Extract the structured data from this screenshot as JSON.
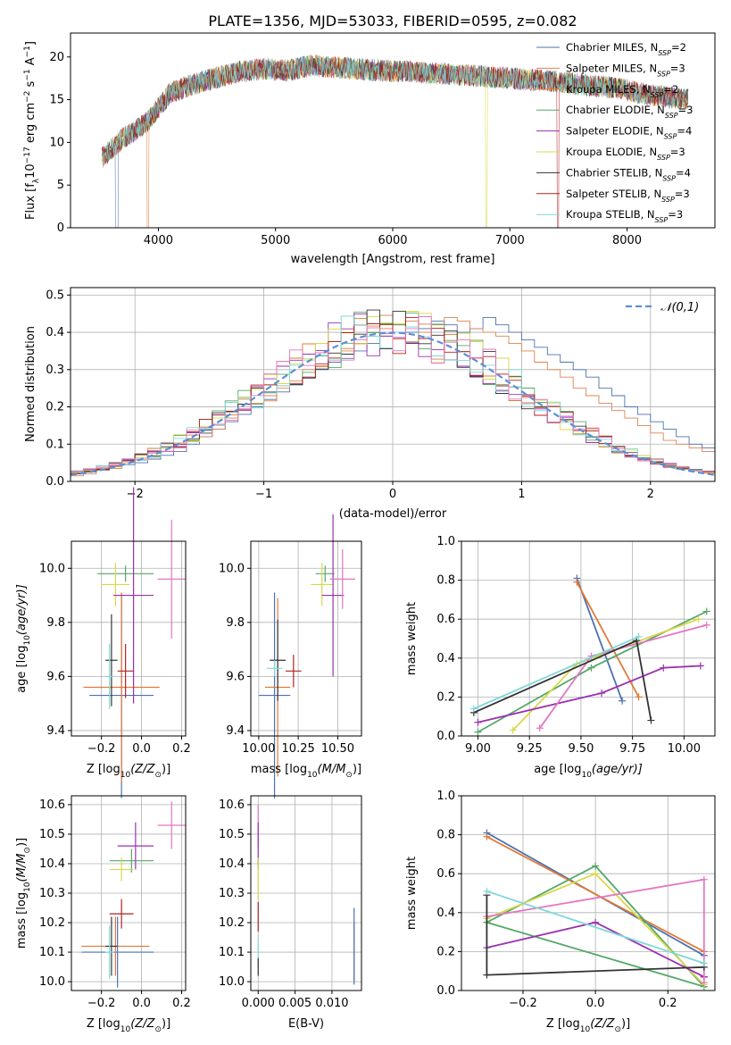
{
  "chart_data": [
    {
      "id": "spectrum",
      "type": "line",
      "title": "PLATE=1356, MJD=53033, FIBERID=0595, z=0.082",
      "xlabel": "wavelength [Angstrom, rest frame]",
      "ylabel": "Flux [f",
      "ylabel_sub": "λ",
      "ylabel_tail": "10",
      "ylabel_exp1": "−17",
      "ylabel_mid": " erg cm",
      "ylabel_exp2": "−2",
      "ylabel_mid2": " s",
      "ylabel_exp3": "−1",
      "ylabel_mid3": " A",
      "ylabel_exp4": "−1",
      "ylabel_end": "]",
      "xlim": [
        3250,
        8750
      ],
      "ylim": [
        0,
        22.8
      ],
      "xticks": [
        4000,
        5000,
        6000,
        7000,
        8000
      ],
      "yticks": [
        0,
        5,
        10,
        15,
        20
      ],
      "grid": false,
      "legend_position": "upper-right",
      "legend": [
        {
          "name": "Chabrier MILES, N",
          "sub": "SSP",
          "tail": "=2",
          "color": "#4c72b0"
        },
        {
          "name": "Salpeter MILES, N",
          "sub": "SSP",
          "tail": "=3",
          "color": "#dd8452"
        },
        {
          "name": "Kroupa MILES, N",
          "sub": "SSP",
          "tail": "=2",
          "color": "#e07b39"
        },
        {
          "name": "Chabrier ELODIE, N",
          "sub": "SSP",
          "tail": "=3",
          "color": "#55a868"
        },
        {
          "name": "Salpeter ELODIE, N",
          "sub": "SSP",
          "tail": "=4",
          "color": "#9b30b0"
        },
        {
          "name": "Kroupa ELODIE, N",
          "sub": "SSP",
          "tail": "=3",
          "color": "#d8d84a"
        },
        {
          "name": "Chabrier STELIB, N",
          "sub": "SSP",
          "tail": "=4",
          "color": "#333333"
        },
        {
          "name": "Salpeter STELIB, N",
          "sub": "SSP",
          "tail": "=3",
          "color": "#b22222"
        },
        {
          "name": "Kroupa STELIB, N",
          "sub": "SSP",
          "tail": "=3",
          "color": "#7fd8d8"
        }
      ],
      "continuum_x": [
        3520,
        3700,
        3900,
        4100,
        4300,
        4500,
        4700,
        4900,
        5100,
        5300,
        5500,
        5700,
        5900,
        6100,
        6300,
        6500,
        6700,
        6900,
        7100,
        7300,
        7500,
        7700,
        7900,
        8100,
        8300,
        8500
      ],
      "continuum_y": [
        8.2,
        10.5,
        12.3,
        15.8,
        16.8,
        17.6,
        18.3,
        18.6,
        18.4,
        19.0,
        18.8,
        18.6,
        18.4,
        18.3,
        18.1,
        18.0,
        17.8,
        17.6,
        17.4,
        17.2,
        17.0,
        16.6,
        16.4,
        15.8,
        15.4,
        15.0
      ],
      "x_range": [
        3520,
        8520
      ]
    },
    {
      "id": "residuals",
      "type": "histogram",
      "xlabel": "(data-model)/error",
      "ylabel": "Normed distribution",
      "xlim": [
        -2.5,
        2.5
      ],
      "ylim": [
        0,
        0.52
      ],
      "xticks": [
        -2,
        -1,
        0,
        1,
        2
      ],
      "yticks": [
        0.0,
        0.1,
        0.2,
        0.3,
        0.4,
        0.5
      ],
      "grid": true,
      "legend_position": "upper-right",
      "legend_label": "𝒩(0,1)",
      "bin_width": 0.1,
      "bin_start": -2.5,
      "series": [
        {
          "color": "#4c72b0",
          "values": [
            0.02,
            0.025,
            0.03,
            0.04,
            0.045,
            0.05,
            0.06,
            0.07,
            0.08,
            0.1,
            0.12,
            0.14,
            0.16,
            0.18,
            0.2,
            0.22,
            0.24,
            0.26,
            0.28,
            0.3,
            0.32,
            0.33,
            0.35,
            0.37,
            0.39,
            0.42,
            0.4,
            0.41,
            0.43,
            0.42,
            0.4,
            0.41,
            0.44,
            0.42,
            0.4,
            0.38,
            0.36,
            0.34,
            0.32,
            0.3,
            0.28,
            0.25,
            0.23,
            0.2,
            0.18,
            0.16,
            0.14,
            0.12,
            0.1,
            0.09
          ]
        },
        {
          "color": "#dd8452",
          "values": [
            0.015,
            0.02,
            0.03,
            0.035,
            0.05,
            0.06,
            0.065,
            0.08,
            0.09,
            0.11,
            0.12,
            0.14,
            0.17,
            0.19,
            0.21,
            0.23,
            0.25,
            0.27,
            0.3,
            0.31,
            0.33,
            0.35,
            0.37,
            0.4,
            0.41,
            0.42,
            0.43,
            0.4,
            0.42,
            0.44,
            0.43,
            0.41,
            0.4,
            0.39,
            0.37,
            0.35,
            0.32,
            0.3,
            0.28,
            0.25,
            0.23,
            0.21,
            0.19,
            0.17,
            0.15,
            0.13,
            0.11,
            0.1,
            0.09,
            0.08
          ]
        }
      ],
      "normal_curve": true
    },
    {
      "id": "age-vs-Z",
      "type": "errorbar",
      "xlabel": "Z [log",
      "xlabel_sub": "10",
      "xlabel_tail": "(Z/Z",
      "xlabel_sub2": "⊙",
      "xlabel_end": ")]",
      "ylabel": "age  [log",
      "ylabel_sub": "10",
      "ylabel_tail": "(age/yr)]",
      "xlim": [
        -0.35,
        0.22
      ],
      "ylim": [
        9.38,
        10.1
      ],
      "xticks": [
        -0.2,
        0.0,
        0.2
      ],
      "yticks": [
        9.4,
        9.6,
        9.8,
        10.0
      ],
      "grid": true,
      "points": [
        {
          "color": "#4c72b0",
          "x": -0.1,
          "y": 9.53,
          "xerr": 0.16,
          "yerr": 0.38
        },
        {
          "color": "#e07b39",
          "x": -0.1,
          "y": 9.56,
          "xerr": 0.19,
          "yerr": 0.35
        },
        {
          "color": "#55a868",
          "x": -0.08,
          "y": 9.98,
          "xerr": 0.14,
          "yerr": 0.03
        },
        {
          "color": "#d8d84a",
          "x": -0.13,
          "y": 9.94,
          "xerr": 0.07,
          "yerr": 0.08
        },
        {
          "color": "#9b30b0",
          "x": -0.04,
          "y": 9.9,
          "xerr": 0.1,
          "yerr": 0.4
        },
        {
          "color": "#e377c2",
          "x": 0.15,
          "y": 9.96,
          "xerr": 0.07,
          "yerr": 0.22
        },
        {
          "color": "#333333",
          "x": -0.15,
          "y": 9.66,
          "xerr": 0.03,
          "yerr": 0.17
        },
        {
          "color": "#b22222",
          "x": -0.08,
          "y": 9.62,
          "xerr": 0.04,
          "yerr": 0.1
        },
        {
          "color": "#7fd8d8",
          "x": -0.16,
          "y": 9.6,
          "xerr": 0.02,
          "yerr": 0.12
        }
      ]
    },
    {
      "id": "age-vs-mass",
      "type": "errorbar",
      "xlabel": "mass [log",
      "xlabel_sub": "10",
      "xlabel_tail": "(M/M",
      "xlabel_sub2": "⊙",
      "xlabel_end": ")]",
      "xlim": [
        9.95,
        10.65
      ],
      "ylim": [
        9.38,
        10.1
      ],
      "xticks": [
        10.0,
        10.25,
        10.5
      ],
      "yticks": [
        9.4,
        9.6,
        9.8,
        10.0
      ],
      "grid": true,
      "points": [
        {
          "color": "#4c72b0",
          "x": 10.1,
          "y": 9.53,
          "xerr": 0.1,
          "yerr": 0.38
        },
        {
          "color": "#e07b39",
          "x": 10.12,
          "y": 9.56,
          "xerr": 0.08,
          "yerr": 0.33
        },
        {
          "color": "#55a868",
          "x": 10.42,
          "y": 9.98,
          "xerr": 0.06,
          "yerr": 0.03
        },
        {
          "color": "#d8d84a",
          "x": 10.4,
          "y": 9.94,
          "xerr": 0.07,
          "yerr": 0.08
        },
        {
          "color": "#9b30b0",
          "x": 10.47,
          "y": 9.9,
          "xerr": 0.07,
          "yerr": 0.3
        },
        {
          "color": "#e377c2",
          "x": 10.53,
          "y": 9.96,
          "xerr": 0.08,
          "yerr": 0.11
        },
        {
          "color": "#333333",
          "x": 10.12,
          "y": 9.66,
          "xerr": 0.05,
          "yerr": 0.15
        },
        {
          "color": "#b22222",
          "x": 10.22,
          "y": 9.62,
          "xerr": 0.05,
          "yerr": 0.06
        },
        {
          "color": "#7fd8d8",
          "x": 10.1,
          "y": 9.63,
          "xerr": 0.05,
          "yerr": 0.03
        }
      ]
    },
    {
      "id": "mw-vs-age",
      "type": "line",
      "xlabel": "age  [log",
      "xlabel_sub": "10",
      "xlabel_tail": "(age/yr)]",
      "ylabel": "mass weight",
      "xlim": [
        8.92,
        10.15
      ],
      "ylim": [
        0,
        1.0
      ],
      "xticks": [
        9.0,
        9.25,
        9.5,
        9.75,
        10.0
      ],
      "yticks": [
        0.0,
        0.2,
        0.4,
        0.6,
        0.8,
        1.0
      ],
      "grid": true,
      "series": [
        {
          "color": "#4c72b0",
          "x": [
            9.48,
            9.7
          ],
          "y": [
            0.81,
            0.18
          ]
        },
        {
          "color": "#e07b39",
          "x": [
            9.48,
            9.78
          ],
          "y": [
            0.79,
            0.2
          ]
        },
        {
          "color": "#55a868",
          "x": [
            9.0,
            9.55,
            10.11
          ],
          "y": [
            0.02,
            0.35,
            0.64
          ]
        },
        {
          "color": "#d8d84a",
          "x": [
            9.17,
            9.48,
            10.07
          ],
          "y": [
            0.03,
            0.37,
            0.6
          ]
        },
        {
          "color": "#9b30b0",
          "x": [
            9.0,
            9.6,
            9.9,
            10.08
          ],
          "y": [
            0.07,
            0.22,
            0.35,
            0.36
          ]
        },
        {
          "color": "#e377c2",
          "x": [
            9.3,
            9.55,
            10.11
          ],
          "y": [
            0.04,
            0.41,
            0.57
          ]
        },
        {
          "color": "#333333",
          "x": [
            8.98,
            9.77,
            9.84
          ],
          "y": [
            0.12,
            0.49,
            0.08
          ]
        },
        {
          "color": "#7fd8d8",
          "x": [
            8.98,
            9.78
          ],
          "y": [
            0.14,
            0.51
          ]
        }
      ]
    },
    {
      "id": "mass-vs-Z",
      "type": "errorbar",
      "xlabel": "Z [log",
      "xlabel_sub": "10",
      "xlabel_tail": "(Z/Z",
      "xlabel_sub2": "⊙",
      "xlabel_end": ")]",
      "ylabel": "mass [log",
      "ylabel_sub": "10",
      "ylabel_tail": "(M/M",
      "ylabel_sub2": "⊙",
      "ylabel_end": ")]",
      "xlim": [
        -0.35,
        0.22
      ],
      "ylim": [
        9.97,
        10.63
      ],
      "xticks": [
        -0.2,
        0.0,
        0.2
      ],
      "yticks": [
        10.0,
        10.1,
        10.2,
        10.3,
        10.4,
        10.5,
        10.6
      ],
      "grid": true,
      "points": [
        {
          "color": "#4c72b0",
          "x": -0.12,
          "y": 10.1,
          "xerr": 0.18,
          "yerr": 0.12
        },
        {
          "color": "#e07b39",
          "x": -0.13,
          "y": 10.12,
          "xerr": 0.17,
          "yerr": 0.1
        },
        {
          "color": "#55a868",
          "x": -0.05,
          "y": 10.41,
          "xerr": 0.11,
          "yerr": 0.04
        },
        {
          "color": "#d8d84a",
          "x": -0.1,
          "y": 10.38,
          "xerr": 0.06,
          "yerr": 0.04
        },
        {
          "color": "#9b30b0",
          "x": -0.03,
          "y": 10.46,
          "xerr": 0.09,
          "yerr": 0.08
        },
        {
          "color": "#e377c2",
          "x": 0.15,
          "y": 10.53,
          "xerr": 0.07,
          "yerr": 0.08
        },
        {
          "color": "#333333",
          "x": -0.15,
          "y": 10.12,
          "xerr": 0.03,
          "yerr": 0.1
        },
        {
          "color": "#b22222",
          "x": -0.1,
          "y": 10.23,
          "xerr": 0.06,
          "yerr": 0.05
        },
        {
          "color": "#7fd8d8",
          "x": -0.16,
          "y": 10.1,
          "xerr": 0.02,
          "yerr": 0.09
        }
      ]
    },
    {
      "id": "mass-vs-ebv",
      "type": "errorbar",
      "xlabel": "E(B-V)",
      "xlim": [
        -0.001,
        0.014
      ],
      "ylim": [
        9.97,
        10.63
      ],
      "xticks": [
        0.0,
        0.005,
        0.01
      ],
      "xtick_labels": [
        "0.000",
        "0.005",
        "0.010"
      ],
      "yticks": [
        10.0,
        10.1,
        10.2,
        10.3,
        10.4,
        10.5,
        10.6
      ],
      "grid": true,
      "points": [
        {
          "color": "#e377c2",
          "x": 0.0,
          "y": 10.53,
          "xerr": 0,
          "yerr": 0.07
        },
        {
          "color": "#9b30b0",
          "x": 0.0,
          "y": 10.46,
          "xerr": 0,
          "yerr": 0.08
        },
        {
          "color": "#d8d84a",
          "x": 0.0,
          "y": 10.35,
          "xerr": 0,
          "yerr": 0.07
        },
        {
          "color": "#b22222",
          "x": 0.0,
          "y": 10.22,
          "xerr": 0,
          "yerr": 0.05
        },
        {
          "color": "#7fd8d8",
          "x": 0.0,
          "y": 10.1,
          "xerr": 0,
          "yerr": 0.05
        },
        {
          "color": "#333333",
          "x": 0.0,
          "y": 10.05,
          "xerr": 0,
          "yerr": 0.03
        },
        {
          "color": "#e07b39",
          "x": 0.013,
          "y": 10.1,
          "xerr": 0,
          "yerr": 0.1
        },
        {
          "color": "#4c72b0",
          "x": 0.013,
          "y": 10.12,
          "xerr": 0,
          "yerr": 0.13
        }
      ]
    },
    {
      "id": "mw-vs-Z",
      "type": "line",
      "xlabel": "Z [log",
      "xlabel_sub": "10",
      "xlabel_tail": "(Z/Z",
      "xlabel_sub2": "⊙",
      "xlabel_end": ")]",
      "ylabel": "mass weight",
      "xlim": [
        -0.37,
        0.33
      ],
      "ylim": [
        0,
        1.0
      ],
      "xticks": [
        -0.2,
        0.0,
        0.2
      ],
      "yticks": [
        0.0,
        0.2,
        0.4,
        0.6,
        0.8,
        1.0
      ],
      "grid": true,
      "series": [
        {
          "color": "#4c72b0",
          "x": [
            -0.3,
            0.3
          ],
          "y": [
            0.81,
            0.18
          ]
        },
        {
          "color": "#e07b39",
          "x": [
            -0.3,
            0.3
          ],
          "y": [
            0.79,
            0.2
          ]
        },
        {
          "color": "#55a868",
          "x": [
            -0.3,
            0.0,
            0.3,
            -0.3
          ],
          "y": [
            0.35,
            0.64,
            0.02,
            0.35
          ]
        },
        {
          "color": "#d8d84a",
          "x": [
            -0.3,
            0.0,
            0.3
          ],
          "y": [
            0.37,
            0.6,
            0.03
          ]
        },
        {
          "color": "#9b30b0",
          "x": [
            -0.3,
            0.0,
            0.3,
            0.3
          ],
          "y": [
            0.22,
            0.35,
            0.07,
            0.07
          ]
        },
        {
          "color": "#e377c2",
          "x": [
            -0.3,
            0.3,
            0.3
          ],
          "y": [
            0.38,
            0.57,
            0.04
          ]
        },
        {
          "color": "#333333",
          "x": [
            -0.3,
            -0.3,
            0.3
          ],
          "y": [
            0.49,
            0.08,
            0.12
          ]
        },
        {
          "color": "#7fd8d8",
          "x": [
            -0.3,
            0.3
          ],
          "y": [
            0.51,
            0.14
          ]
        }
      ]
    }
  ]
}
